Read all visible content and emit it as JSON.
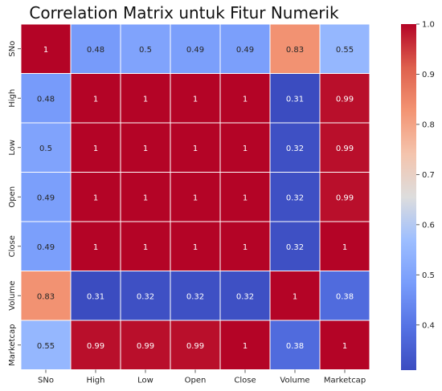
{
  "chart_data": {
    "type": "heatmap",
    "title": "Correlation Matrix untuk Fitur Numerik",
    "xlabel": "",
    "ylabel": "",
    "x_categories": [
      "SNo",
      "High",
      "Low",
      "Open",
      "Close",
      "Volume",
      "Marketcap"
    ],
    "y_categories": [
      "SNo",
      "High",
      "Low",
      "Open",
      "Close",
      "Volume",
      "Marketcap"
    ],
    "values": [
      [
        1,
        0.48,
        0.5,
        0.49,
        0.49,
        0.83,
        0.55
      ],
      [
        0.48,
        1,
        1,
        1,
        1,
        0.31,
        0.99
      ],
      [
        0.5,
        1,
        1,
        1,
        1,
        0.32,
        0.99
      ],
      [
        0.49,
        1,
        1,
        1,
        1,
        0.32,
        0.99
      ],
      [
        0.49,
        1,
        1,
        1,
        1,
        0.32,
        1
      ],
      [
        0.83,
        0.31,
        0.32,
        0.32,
        0.32,
        1,
        0.38
      ],
      [
        0.55,
        0.99,
        0.99,
        0.99,
        1,
        0.38,
        1
      ]
    ],
    "colormap": "coolwarm",
    "vmin": 0.31,
    "vmax": 1.0,
    "colorbar_ticks": [
      "0.4",
      "0.5",
      "0.6",
      "0.7",
      "0.8",
      "0.9",
      "1.0"
    ],
    "annotated": true,
    "cell_borders": "white"
  }
}
